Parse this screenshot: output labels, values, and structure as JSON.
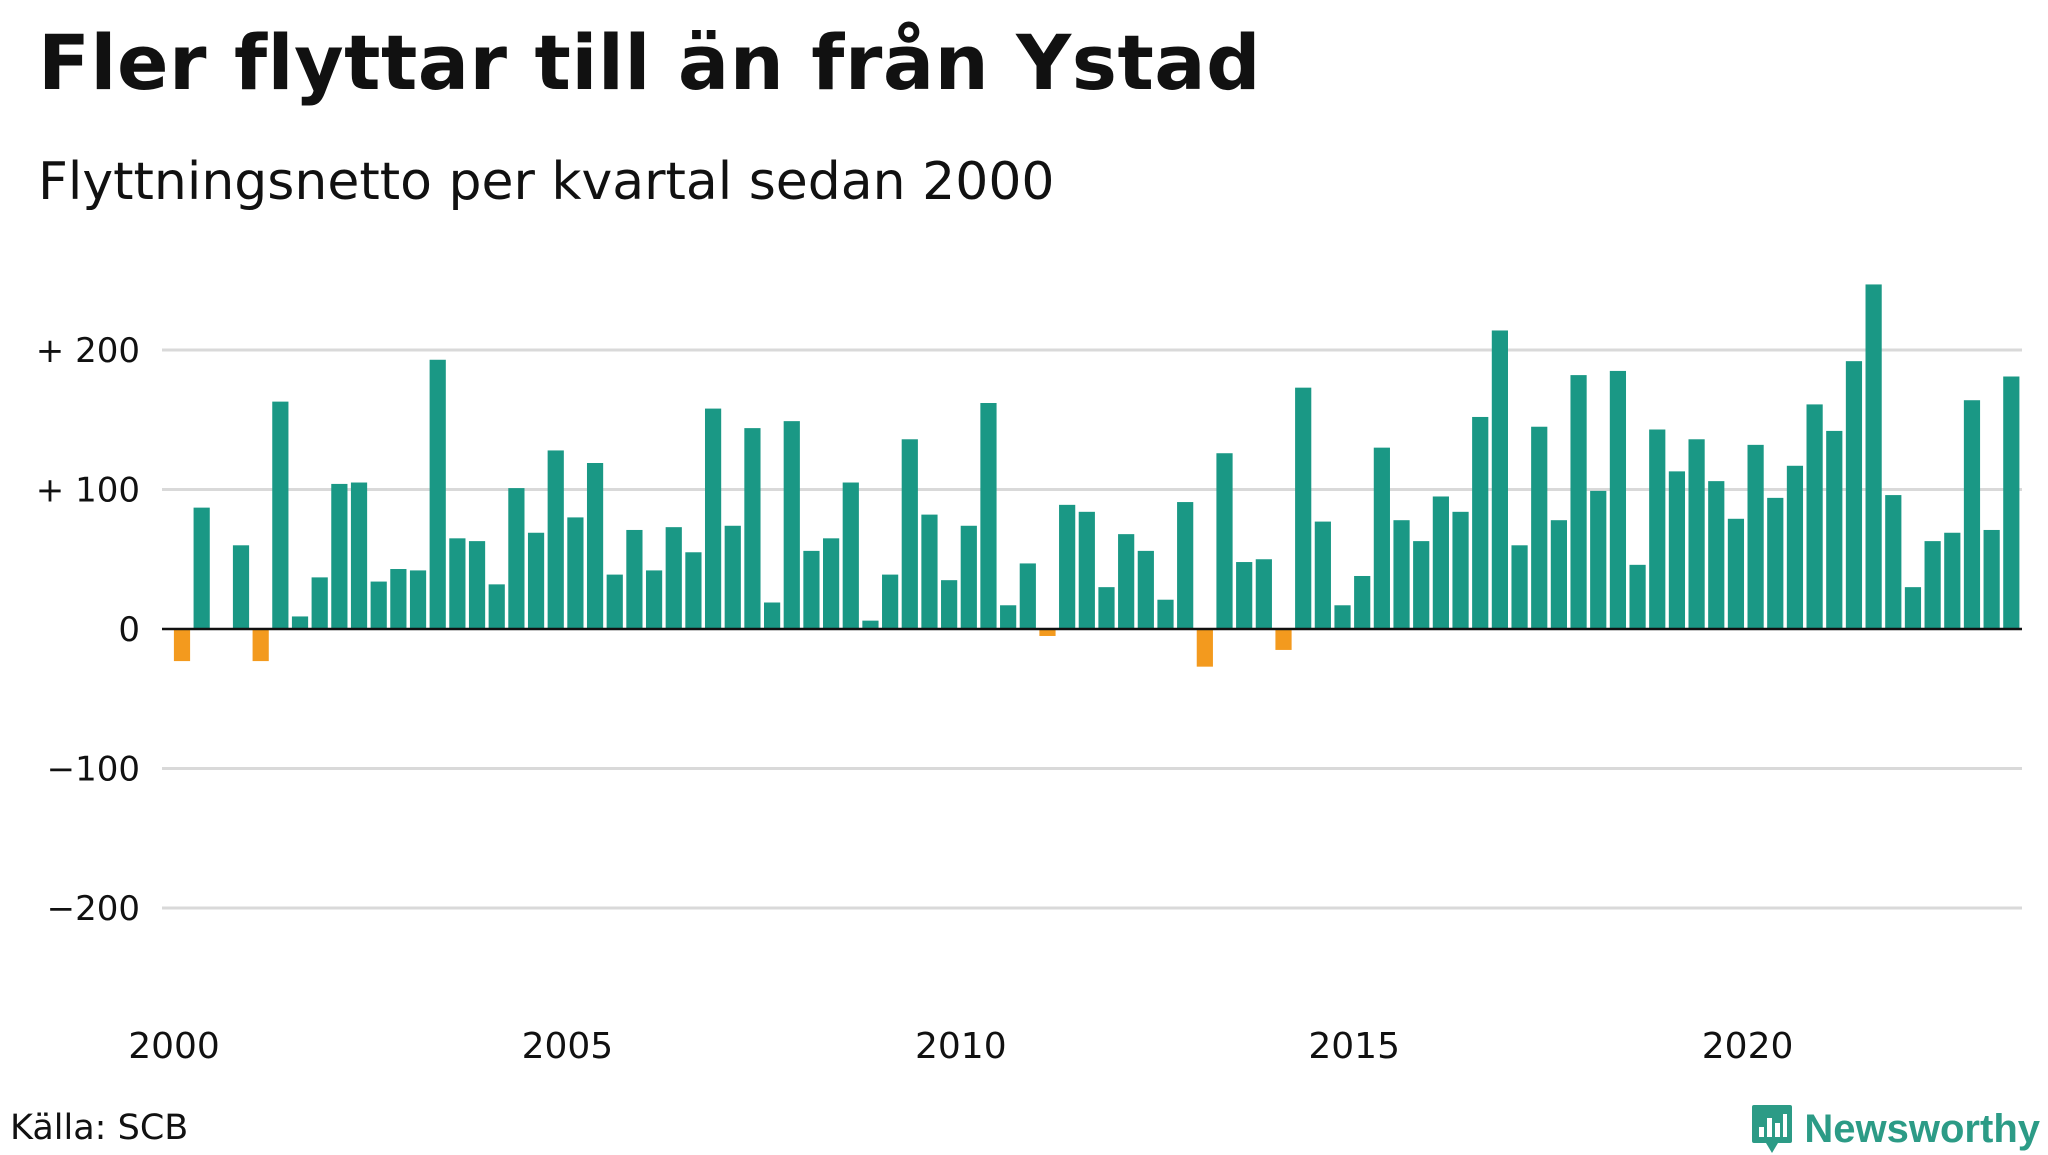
{
  "title": "Fler flyttar till än från Ystad",
  "subtitle": "Flyttningsnetto per kvartal sedan 2000",
  "source": "Källa: SCB",
  "brand": "Newsworthy",
  "colors": {
    "positive": "#1a9885",
    "negative": "#f39a1e",
    "grid": "#d9d9d9",
    "zero_line": "#111111"
  },
  "chart_data": {
    "type": "bar",
    "x_start_year": 2000,
    "periods_per_year": 4,
    "x_ticks": [
      "2000",
      "2005",
      "2010",
      "2015",
      "2020"
    ],
    "y_ticks": [
      {
        "value": 200,
        "label": "+ 200"
      },
      {
        "value": 100,
        "label": "+ 100"
      },
      {
        "value": 0,
        "label": "0"
      },
      {
        "value": -100,
        "label": "−100"
      },
      {
        "value": -200,
        "label": "−200"
      }
    ],
    "ylim": [
      -260,
      250
    ],
    "grid": true,
    "values": [
      -23,
      87,
      0,
      60,
      -23,
      163,
      9,
      37,
      104,
      105,
      34,
      43,
      42,
      193,
      65,
      63,
      32,
      101,
      69,
      128,
      80,
      119,
      39,
      71,
      42,
      73,
      55,
      158,
      74,
      144,
      19,
      149,
      56,
      65,
      105,
      6,
      39,
      136,
      82,
      35,
      74,
      162,
      17,
      47,
      -5,
      89,
      84,
      30,
      68,
      56,
      21,
      91,
      -27,
      126,
      48,
      50,
      -15,
      173,
      77,
      17,
      38,
      130,
      78,
      63,
      95,
      84,
      152,
      214,
      60,
      145,
      78,
      182,
      99,
      185,
      46,
      143,
      113,
      136,
      106,
      79,
      132,
      94,
      117,
      161,
      142,
      192,
      247,
      96,
      30,
      63,
      69,
      164,
      71,
      181
    ]
  }
}
